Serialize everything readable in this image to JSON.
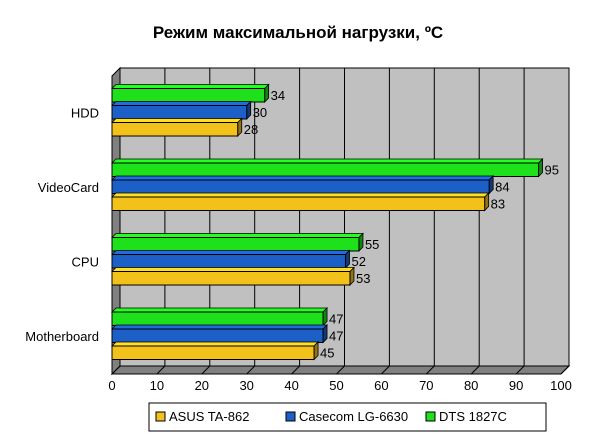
{
  "chart_data": {
    "type": "bar",
    "orientation": "horizontal",
    "title": "Режим максимальной нагрузки, ºС",
    "xlabel": "",
    "ylabel": "",
    "xlim": [
      0,
      100
    ],
    "x_ticks": [
      0,
      10,
      20,
      30,
      40,
      50,
      60,
      70,
      80,
      90,
      100
    ],
    "grid": "vertical",
    "legend_position": "bottom",
    "categories": [
      "HDD",
      "VideoCard",
      "CPU",
      "Motherboard"
    ],
    "series": [
      {
        "name": "ASUS TA-862",
        "color": "#f2c21b",
        "values": [
          28,
          83,
          53,
          45
        ]
      },
      {
        "name": "Casecom LG-6630",
        "color": "#1b5fc7",
        "values": [
          30,
          84,
          52,
          47
        ]
      },
      {
        "name": "DTS 1827C",
        "color": "#1ee01b",
        "values": [
          34,
          95,
          55,
          47
        ]
      }
    ]
  }
}
